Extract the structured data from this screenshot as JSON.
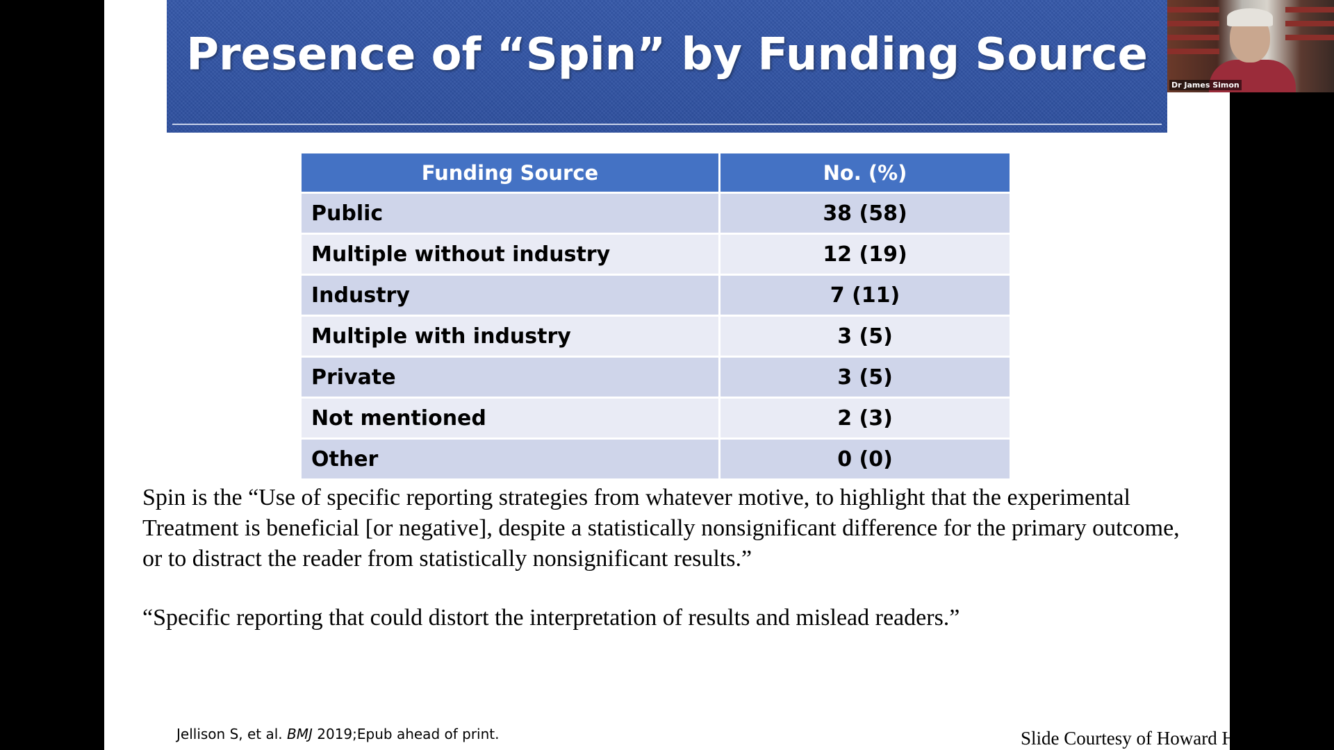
{
  "slide": {
    "title": "Presence of “Spin” by Funding Source",
    "table": {
      "headers": [
        "Funding Source",
        "No.  (%)"
      ],
      "rows": [
        {
          "source": "Public",
          "value": "38 (58)"
        },
        {
          "source": "Multiple without industry",
          "value": "12 (19)"
        },
        {
          "source": "Industry",
          "value": "7 (11)"
        },
        {
          "source": "Multiple with industry",
          "value": "3 (5)"
        },
        {
          "source": "Private",
          "value": "3 (5)"
        },
        {
          "source": "Not mentioned",
          "value": "2 (3)"
        },
        {
          "source": "Other",
          "value": "0 (0)"
        }
      ]
    },
    "definition_quote": "Spin is the “Use of specific reporting strategies from whatever motive, to highlight that the experimental Treatment is beneficial [or negative], despite a statistically nonsignificant difference for the primary outcome, or to distract the reader from statistically nonsignificant results.”",
    "second_quote": "“Specific reporting that could distort the interpretation of results and mislead readers.”",
    "citation": {
      "authors": "Jellison S, et al.",
      "journal": "BMJ",
      "details": "2019;Epub ahead of print."
    },
    "courtesy": "Slide Courtesy of Howard Hodis, MD"
  },
  "video": {
    "participant_name": "Dr James Simon"
  },
  "colors": {
    "banner": "#2d4f9e",
    "table_header": "#4472c4",
    "row_odd": "#cfd5ea",
    "row_even": "#e9ebf5"
  }
}
